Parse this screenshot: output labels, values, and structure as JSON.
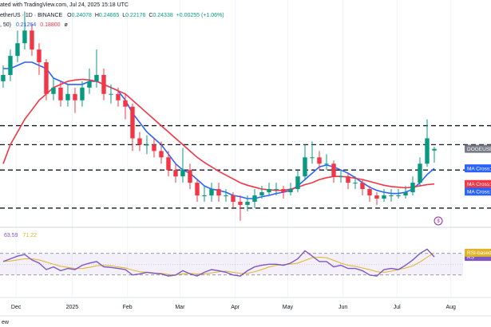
{
  "header": {
    "published": "ated with TradingView.com, Jul 24, 2025 15:18 UTC",
    "symbol": "etherUS · 1D · BINANCE",
    "ohlc_letters": [
      "O",
      "H",
      "L",
      "C"
    ],
    "change": "+0.00255 (+1.06%)",
    "ma_legend": ", 50)",
    "ma_values": [
      "0.21264",
      "0.18800"
    ],
    "ma_extra": "ø",
    "footer": "ew"
  },
  "chart_data": [
    {
      "type": "candlestick",
      "symbol_label": "DOGEUSD",
      "up_color": "#089981",
      "down_color": "#f23645",
      "open": [
        0.35,
        0.36,
        0.39,
        0.41,
        0.43,
        0.4,
        0.38,
        0.33,
        0.34,
        0.32,
        0.33,
        0.32,
        0.34,
        0.35,
        0.36,
        0.33,
        0.33,
        0.32,
        0.31,
        0.26,
        0.25,
        0.25,
        0.24,
        0.23,
        0.21,
        0.2,
        0.21,
        0.19,
        0.17,
        0.17,
        0.18,
        0.17,
        0.17,
        0.16,
        0.155,
        0.16,
        0.17,
        0.175,
        0.18,
        0.18,
        0.175,
        0.18,
        0.2,
        0.23,
        0.23,
        0.22,
        0.22,
        0.2,
        0.2,
        0.19,
        0.19,
        0.18,
        0.17,
        0.165,
        0.17,
        0.17,
        0.17,
        0.175,
        0.19,
        0.22,
        0.24078
      ],
      "high": [
        0.375,
        0.4,
        0.43,
        0.46,
        0.44,
        0.41,
        0.385,
        0.355,
        0.35,
        0.345,
        0.34,
        0.35,
        0.37,
        0.4,
        0.37,
        0.345,
        0.34,
        0.33,
        0.315,
        0.27,
        0.265,
        0.26,
        0.255,
        0.24,
        0.22,
        0.245,
        0.22,
        0.195,
        0.185,
        0.19,
        0.19,
        0.18,
        0.175,
        0.17,
        0.17,
        0.18,
        0.185,
        0.19,
        0.19,
        0.185,
        0.19,
        0.21,
        0.25,
        0.255,
        0.24,
        0.235,
        0.225,
        0.21,
        0.205,
        0.2,
        0.195,
        0.185,
        0.175,
        0.18,
        0.18,
        0.18,
        0.185,
        0.2,
        0.23,
        0.29,
        0.24665
      ],
      "low": [
        0.34,
        0.35,
        0.38,
        0.4,
        0.39,
        0.36,
        0.32,
        0.32,
        0.31,
        0.31,
        0.3,
        0.31,
        0.33,
        0.34,
        0.32,
        0.315,
        0.31,
        0.29,
        0.24,
        0.24,
        0.235,
        0.23,
        0.22,
        0.2,
        0.19,
        0.19,
        0.18,
        0.16,
        0.16,
        0.16,
        0.16,
        0.16,
        0.15,
        0.13,
        0.145,
        0.15,
        0.165,
        0.17,
        0.17,
        0.165,
        0.17,
        0.175,
        0.195,
        0.22,
        0.21,
        0.21,
        0.19,
        0.19,
        0.18,
        0.18,
        0.17,
        0.16,
        0.155,
        0.16,
        0.16,
        0.165,
        0.165,
        0.17,
        0.185,
        0.215,
        0.22176
      ],
      "close": [
        0.36,
        0.39,
        0.41,
        0.43,
        0.4,
        0.38,
        0.33,
        0.34,
        0.32,
        0.33,
        0.32,
        0.34,
        0.35,
        0.36,
        0.33,
        0.33,
        0.32,
        0.31,
        0.26,
        0.25,
        0.25,
        0.24,
        0.23,
        0.21,
        0.2,
        0.21,
        0.19,
        0.17,
        0.17,
        0.18,
        0.17,
        0.17,
        0.16,
        0.155,
        0.16,
        0.17,
        0.175,
        0.18,
        0.18,
        0.175,
        0.18,
        0.2,
        0.23,
        0.23,
        0.22,
        0.22,
        0.2,
        0.2,
        0.19,
        0.19,
        0.18,
        0.17,
        0.165,
        0.17,
        0.17,
        0.17,
        0.175,
        0.19,
        0.22,
        0.26,
        0.24338
      ],
      "series": [
        {
          "name": "MA Cross:Short M",
          "color": "#2962ff",
          "values": [
            0.37,
            0.37,
            0.375,
            0.38,
            0.38,
            0.375,
            0.37,
            0.355,
            0.35,
            0.345,
            0.345,
            0.345,
            0.35,
            0.35,
            0.345,
            0.34,
            0.335,
            0.32,
            0.3,
            0.285,
            0.27,
            0.26,
            0.25,
            0.235,
            0.22,
            0.21,
            0.205,
            0.195,
            0.185,
            0.18,
            0.178,
            0.175,
            0.17,
            0.168,
            0.165,
            0.165,
            0.168,
            0.17,
            0.173,
            0.175,
            0.178,
            0.185,
            0.195,
            0.205,
            0.215,
            0.218,
            0.215,
            0.21,
            0.205,
            0.198,
            0.19,
            0.183,
            0.178,
            0.175,
            0.173,
            0.173,
            0.175,
            0.18,
            0.19,
            0.203,
            0.21264
          ]
        },
        {
          "name": "MA Cross:Long M",
          "color": "#f23645",
          "values": [
            0.22,
            0.25,
            0.27,
            0.29,
            0.305,
            0.32,
            0.33,
            0.34,
            0.345,
            0.35,
            0.352,
            0.353,
            0.352,
            0.35,
            0.345,
            0.34,
            0.335,
            0.33,
            0.32,
            0.31,
            0.3,
            0.29,
            0.28,
            0.27,
            0.26,
            0.25,
            0.24,
            0.23,
            0.222,
            0.215,
            0.208,
            0.202,
            0.196,
            0.19,
            0.186,
            0.183,
            0.18,
            0.179,
            0.178,
            0.178,
            0.18,
            0.183,
            0.187,
            0.19,
            0.195,
            0.198,
            0.2,
            0.2,
            0.199,
            0.197,
            0.195,
            0.192,
            0.189,
            0.186,
            0.184,
            0.183,
            0.182,
            0.183,
            0.185,
            0.187,
            0.188
          ]
        }
      ],
      "cross_label": {
        "name": "MA Cross:Cros",
        "color": "#2962ff",
        "value": 0.176
      },
      "levels": [
        0.28,
        0.25,
        0.21,
        0.15
      ],
      "ylim": [
        0.126,
        0.453
      ],
      "xlim": [
        -0.44,
        64
      ],
      "xticks": [
        {
          "value": 1.8,
          "label": "Dec"
        },
        {
          "value": 9.6,
          "label": "2025"
        },
        {
          "value": 17.3,
          "label": "Feb"
        },
        {
          "value": 24.6,
          "label": "Mar"
        },
        {
          "value": 32.3,
          "label": "Apr"
        },
        {
          "value": 39.6,
          "label": "May"
        },
        {
          "value": 47.3,
          "label": "Jun"
        },
        {
          "value": 54.8,
          "label": "Jul"
        },
        {
          "value": 62.3,
          "label": "Aug"
        }
      ],
      "grid": true
    },
    {
      "type": "line",
      "series": [
        {
          "name": "RS",
          "color": "#7e57c2",
          "values": [
            55,
            60,
            65,
            68,
            58,
            52,
            40,
            45,
            38,
            42,
            40,
            48,
            52,
            55,
            45,
            44,
            42,
            40,
            30,
            32,
            35,
            33,
            32,
            28,
            30,
            38,
            32,
            28,
            35,
            40,
            38,
            35,
            30,
            28,
            38,
            45,
            48,
            50,
            50,
            48,
            52,
            60,
            75,
            65,
            55,
            55,
            45,
            48,
            42,
            42,
            38,
            30,
            28,
            40,
            42,
            40,
            48,
            58,
            70,
            78,
            63.59
          ]
        },
        {
          "name": "RSI-based M",
          "color": "#e0b42a",
          "values": [
            55,
            56,
            58,
            60,
            60,
            58,
            54,
            50,
            46,
            44,
            42,
            42,
            44,
            47,
            48,
            47,
            45,
            43,
            39,
            36,
            35,
            34,
            33,
            31,
            30,
            32,
            33,
            32,
            32,
            34,
            36,
            37,
            35,
            33,
            33,
            36,
            40,
            45,
            48,
            49,
            50,
            52,
            57,
            62,
            63,
            62,
            57,
            52,
            48,
            46,
            43,
            40,
            36,
            35,
            37,
            40,
            43,
            47,
            54,
            63,
            71.22
          ]
        }
      ],
      "bands": [
        30,
        70
      ],
      "midline": 50,
      "ylim": [
        0,
        100
      ],
      "xlim": [
        -0.44,
        64
      ]
    }
  ]
}
